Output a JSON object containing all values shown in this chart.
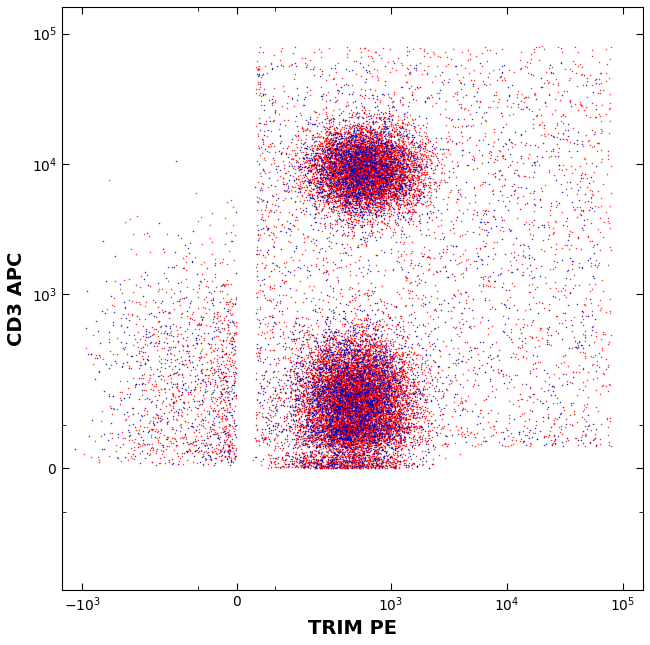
{
  "title": "",
  "xlabel": "TRIM PE",
  "ylabel": "CD3 APC",
  "xlabel_fontsize": 14,
  "ylabel_fontsize": 14,
  "xlabel_fontweight": "bold",
  "ylabel_fontweight": "bold",
  "background_color": "#ffffff",
  "dot_color_red": "#ff0000",
  "dot_color_blue": "#0000b8",
  "dot_size": 1.2,
  "n_red": 18000,
  "n_blue": 6000,
  "seed_red": 42,
  "seed_blue": 99,
  "symlog_linthresh": 100,
  "symlog_linscale": 0.3,
  "xlim_lo": -1500,
  "xlim_hi": 150000,
  "ylim_lo": -400,
  "ylim_hi": 160000
}
